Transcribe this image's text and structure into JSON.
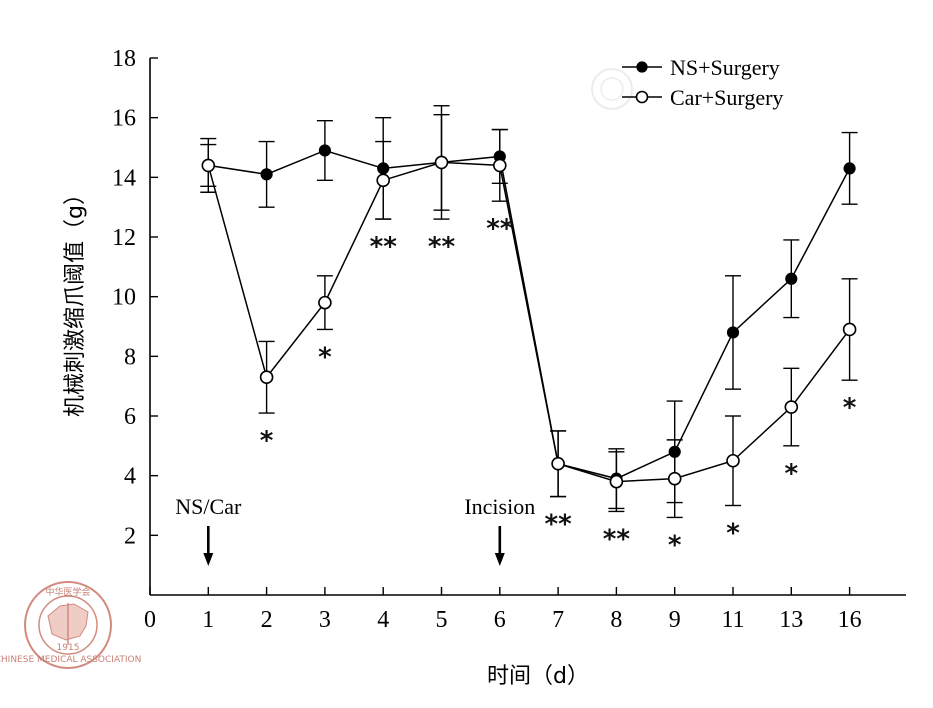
{
  "chart_data": {
    "type": "line",
    "title": "",
    "xlabel": "时间（d）",
    "ylabel": "机械刺激缩爪阈值（g）",
    "ylim": [
      0,
      18
    ],
    "y_ticks": [
      2,
      4,
      6,
      8,
      10,
      12,
      14,
      16,
      18
    ],
    "x_tick_labels": [
      "0",
      "1",
      "2",
      "3",
      "4",
      "5",
      "6",
      "7",
      "8",
      "9",
      "11",
      "13",
      "16"
    ],
    "categories": [
      "1",
      "2",
      "3",
      "4",
      "5",
      "6",
      "7",
      "8",
      "9",
      "11",
      "13",
      "16"
    ],
    "series": [
      {
        "name": "NS+Surgery",
        "marker": "filled-circle",
        "values": [
          14.4,
          14.1,
          14.9,
          14.3,
          14.5,
          14.7,
          4.4,
          3.9,
          4.8,
          8.8,
          10.6,
          14.3
        ],
        "errors": [
          0.9,
          1.1,
          1.0,
          1.7,
          1.6,
          0.9,
          1.1,
          1.0,
          1.7,
          1.9,
          1.3,
          1.2
        ]
      },
      {
        "name": "Car+Surgery",
        "marker": "open-circle",
        "values": [
          14.4,
          7.3,
          9.8,
          13.9,
          14.5,
          14.4,
          4.4,
          3.8,
          3.9,
          4.5,
          6.3,
          8.9
        ],
        "errors": [
          0.7,
          1.2,
          0.9,
          1.3,
          1.9,
          1.2,
          1.1,
          1.0,
          1.3,
          1.5,
          1.3,
          1.7
        ]
      }
    ],
    "significance": [
      "",
      "*",
      "*",
      "**",
      "**",
      "**",
      "**",
      "**",
      "*",
      "*",
      "*",
      "*"
    ],
    "annotations": [
      {
        "text": "NS/Car",
        "category": "1"
      },
      {
        "text": "Incision",
        "category": "6"
      }
    ],
    "legend_position": "top-right",
    "grid": false
  },
  "watermark": {
    "seal_text": "中华医学会",
    "seal_subtext": "CHINESE MEDICAL ASSOCIATION",
    "year": "1915"
  }
}
